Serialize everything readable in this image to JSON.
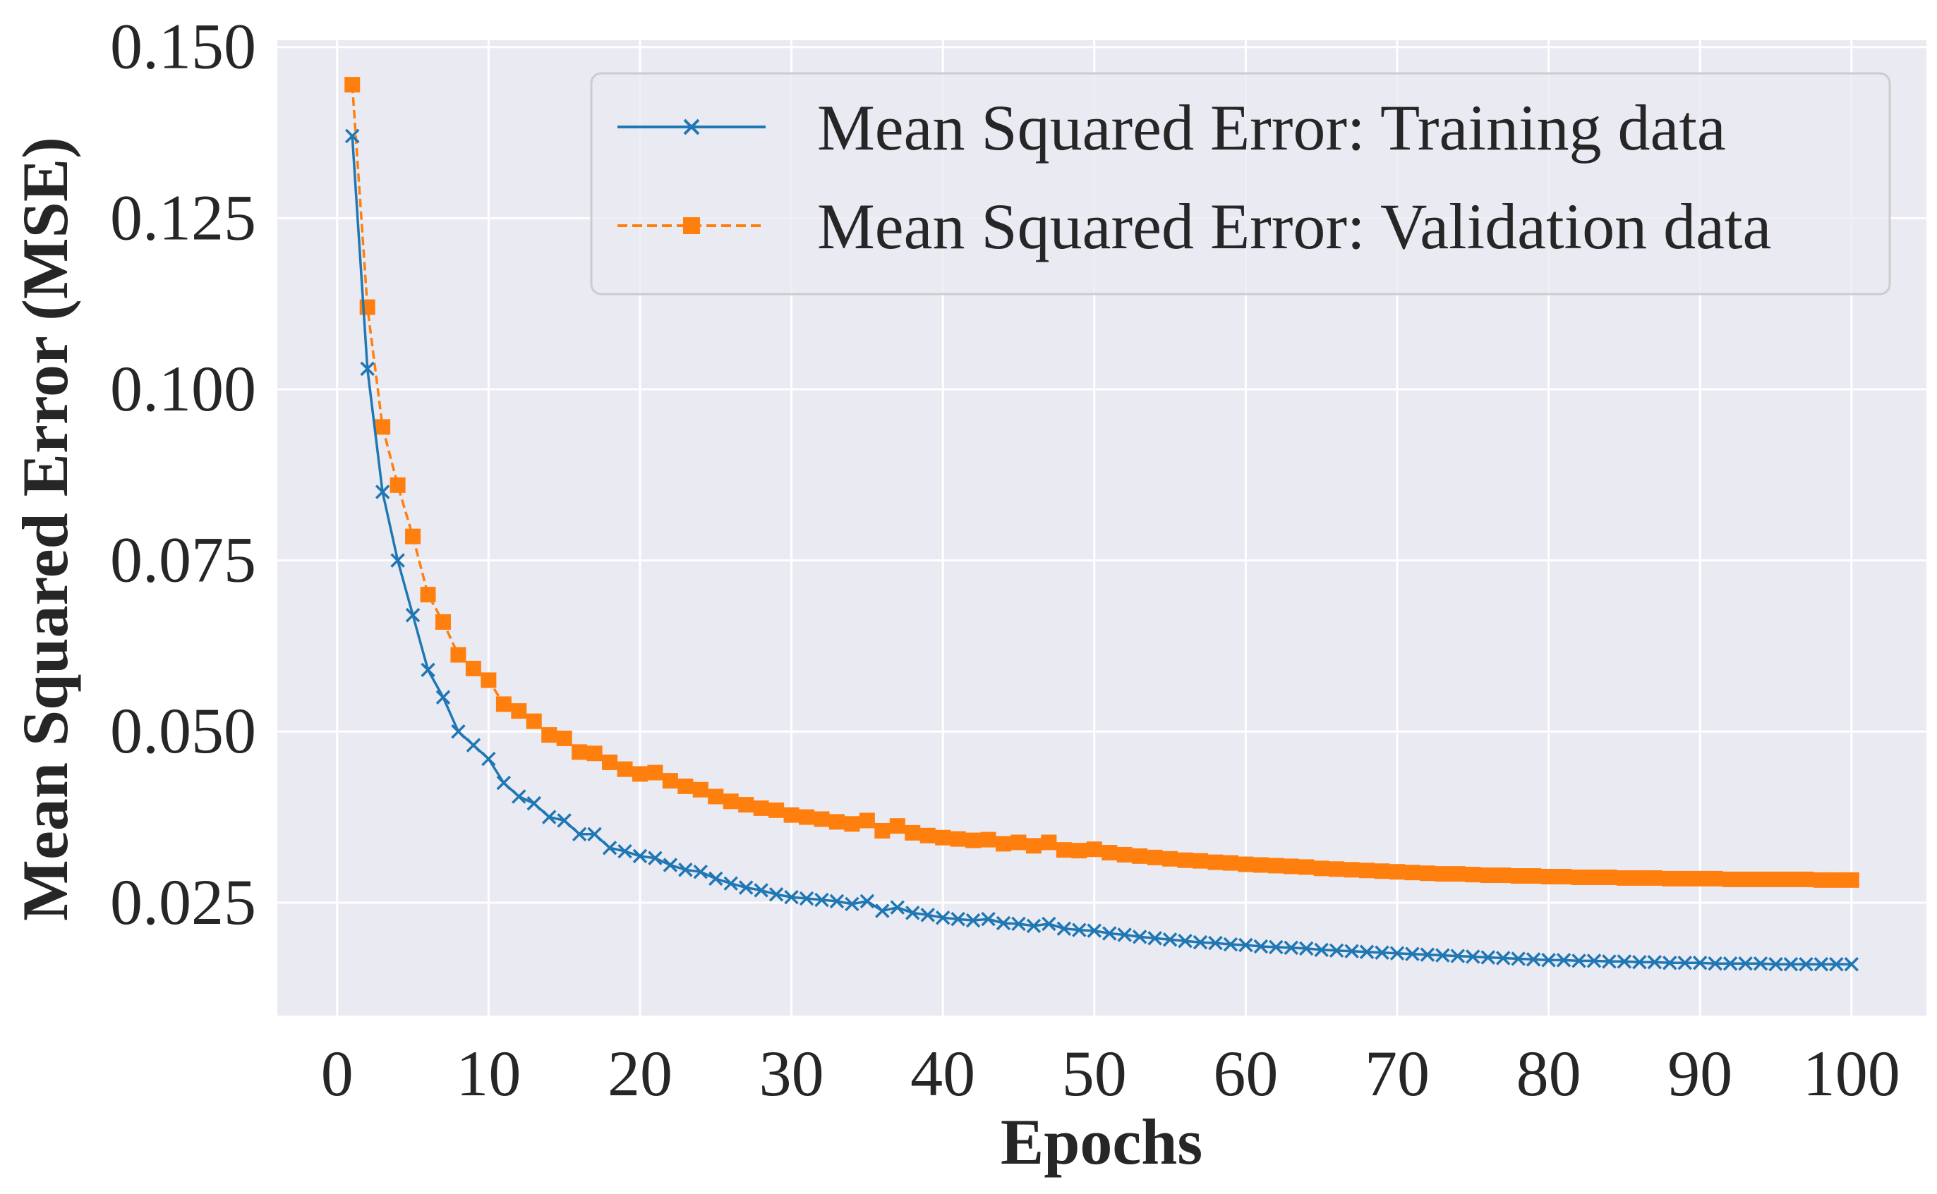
{
  "chart_data": {
    "type": "line",
    "xlabel": "Epochs",
    "ylabel": "Mean Squared Error (MSE)",
    "xlim": [
      -3.95,
      104.95
    ],
    "ylim": [
      0.0085,
      0.151
    ],
    "xticks": [
      0,
      10,
      20,
      30,
      40,
      50,
      60,
      70,
      80,
      90,
      100
    ],
    "yticks": [
      0.025,
      0.05,
      0.075,
      0.1,
      0.125,
      0.15
    ],
    "ytick_labels": [
      "0.025",
      "0.050",
      "0.075",
      "0.100",
      "0.125",
      "0.150"
    ],
    "grid": true,
    "legend_position": "upper right",
    "colors": {
      "plot_bg": "#eaeaf2",
      "grid": "#ffffff",
      "training": "#1f77b4",
      "validation": "#ff7f0e"
    },
    "x": [
      1,
      2,
      3,
      4,
      5,
      6,
      7,
      8,
      9,
      10,
      11,
      12,
      13,
      14,
      15,
      16,
      17,
      18,
      19,
      20,
      21,
      22,
      23,
      24,
      25,
      26,
      27,
      28,
      29,
      30,
      31,
      32,
      33,
      34,
      35,
      36,
      37,
      38,
      39,
      40,
      41,
      42,
      43,
      44,
      45,
      46,
      47,
      48,
      49,
      50,
      51,
      52,
      53,
      54,
      55,
      56,
      57,
      58,
      59,
      60,
      61,
      62,
      63,
      64,
      65,
      66,
      67,
      68,
      69,
      70,
      71,
      72,
      73,
      74,
      75,
      76,
      77,
      78,
      79,
      80,
      81,
      82,
      83,
      84,
      85,
      86,
      87,
      88,
      89,
      90,
      91,
      92,
      93,
      94,
      95,
      96,
      97,
      98,
      99,
      100
    ],
    "series": [
      {
        "name": "Mean Squared Error: Training data",
        "marker": "x",
        "linestyle": "solid",
        "values": [
          0.137,
          0.103,
          0.085,
          0.075,
          0.067,
          0.059,
          0.055,
          0.05,
          0.048,
          0.046,
          0.0425,
          0.0405,
          0.0395,
          0.0375,
          0.037,
          0.035,
          0.035,
          0.033,
          0.0325,
          0.0318,
          0.0315,
          0.0305,
          0.0298,
          0.0295,
          0.0285,
          0.0278,
          0.0272,
          0.0268,
          0.0262,
          0.0258,
          0.0256,
          0.0254,
          0.0252,
          0.0248,
          0.0252,
          0.0238,
          0.0243,
          0.0235,
          0.0232,
          0.0228,
          0.0226,
          0.0224,
          0.0226,
          0.022,
          0.0219,
          0.0216,
          0.0219,
          0.0212,
          0.021,
          0.0209,
          0.0205,
          0.0203,
          0.02,
          0.0198,
          0.0196,
          0.0194,
          0.0192,
          0.0191,
          0.0189,
          0.0188,
          0.0186,
          0.0185,
          0.0184,
          0.0183,
          0.0181,
          0.018,
          0.0179,
          0.0178,
          0.0177,
          0.0176,
          0.0175,
          0.0174,
          0.0173,
          0.0172,
          0.0171,
          0.017,
          0.0169,
          0.0168,
          0.0167,
          0.0166,
          0.0166,
          0.0165,
          0.0165,
          0.0164,
          0.0164,
          0.0163,
          0.0163,
          0.0162,
          0.0162,
          0.0162,
          0.0161,
          0.0161,
          0.0161,
          0.0161,
          0.016,
          0.016,
          0.016,
          0.016,
          0.016,
          0.016
        ]
      },
      {
        "name": "Mean Squared Error: Validation data",
        "marker": "s",
        "linestyle": "dashed",
        "values": [
          0.1445,
          0.112,
          0.0945,
          0.086,
          0.0785,
          0.07,
          0.066,
          0.0612,
          0.0592,
          0.0575,
          0.054,
          0.053,
          0.0515,
          0.0495,
          0.049,
          0.047,
          0.0468,
          0.0455,
          0.0445,
          0.0438,
          0.044,
          0.0428,
          0.042,
          0.0415,
          0.0405,
          0.0398,
          0.0393,
          0.0388,
          0.0385,
          0.0378,
          0.0375,
          0.0372,
          0.0368,
          0.0365,
          0.037,
          0.0355,
          0.0362,
          0.0352,
          0.0348,
          0.0345,
          0.0343,
          0.0341,
          0.0342,
          0.0336,
          0.0338,
          0.0333,
          0.0338,
          0.0327,
          0.0326,
          0.0328,
          0.0323,
          0.032,
          0.0318,
          0.0316,
          0.0314,
          0.0312,
          0.0311,
          0.0309,
          0.0308,
          0.0306,
          0.0305,
          0.0304,
          0.0303,
          0.0302,
          0.03,
          0.0299,
          0.0298,
          0.0297,
          0.0296,
          0.0295,
          0.0294,
          0.0293,
          0.0292,
          0.0292,
          0.0291,
          0.029,
          0.029,
          0.0289,
          0.0289,
          0.0288,
          0.0288,
          0.0287,
          0.0287,
          0.0287,
          0.0286,
          0.0286,
          0.0286,
          0.0285,
          0.0285,
          0.0285,
          0.0285,
          0.0284,
          0.0284,
          0.0284,
          0.0284,
          0.0284,
          0.0284,
          0.0283,
          0.0283,
          0.0283
        ]
      }
    ]
  }
}
